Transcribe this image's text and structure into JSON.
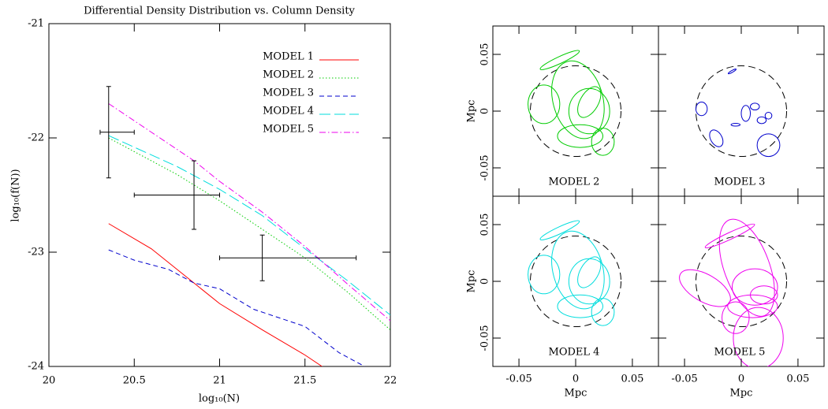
{
  "chart_data": [
    {
      "type": "line",
      "title": "Differential Density Distribution vs. Column Density",
      "xlabel": "log₁₀(N)",
      "ylabel": "log₁₀(f(N))",
      "xlim": [
        20,
        22
      ],
      "ylim": [
        -24,
        -21
      ],
      "xticks": [
        20,
        20.5,
        21,
        21.5,
        22
      ],
      "yticks": [
        -21,
        -22,
        -23,
        -24
      ],
      "series": [
        {
          "name": "MODEL 1",
          "color": "#ff0000",
          "dash": "none",
          "x": [
            20.35,
            20.6,
            20.85,
            21.0,
            21.25,
            21.5,
            21.6
          ],
          "values": [
            -22.75,
            -22.97,
            -23.27,
            -23.45,
            -23.68,
            -23.9,
            -24.0
          ]
        },
        {
          "name": "MODEL 2",
          "color": "#00cc00",
          "dash": "1.5,2.5",
          "x": [
            20.35,
            20.75,
            21.0,
            21.25,
            21.5,
            21.75,
            22.0
          ],
          "values": [
            -22.0,
            -22.32,
            -22.55,
            -22.8,
            -23.05,
            -23.35,
            -23.68
          ]
        },
        {
          "name": "MODEL 3",
          "color": "#0000cc",
          "dash": "6,4",
          "x": [
            20.35,
            20.5,
            20.7,
            20.85,
            21.0,
            21.2,
            21.5,
            21.7,
            21.85
          ],
          "values": [
            -22.98,
            -23.07,
            -23.15,
            -23.27,
            -23.32,
            -23.5,
            -23.65,
            -23.88,
            -24.0
          ]
        },
        {
          "name": "MODEL 4",
          "color": "#00dddd",
          "dash": "14,5",
          "x": [
            20.35,
            20.75,
            21.0,
            21.25,
            21.5,
            21.75,
            22.0
          ],
          "values": [
            -21.98,
            -22.25,
            -22.45,
            -22.68,
            -22.97,
            -23.25,
            -23.55
          ]
        },
        {
          "name": "MODEL 5",
          "color": "#ee00ee",
          "dash": "8,3,1.5,3",
          "x": [
            20.35,
            20.6,
            20.85,
            21.0,
            21.25,
            21.5,
            21.75,
            22.0
          ],
          "values": [
            -21.7,
            -21.95,
            -22.2,
            -22.38,
            -22.65,
            -22.95,
            -23.28,
            -23.6
          ]
        }
      ],
      "errorbars": [
        {
          "x": 20.35,
          "y": -21.95,
          "xlo": 20.3,
          "xhi": 20.5,
          "ylo": -22.35,
          "yhi": -21.55
        },
        {
          "x": 20.85,
          "y": -22.5,
          "xlo": 20.5,
          "xhi": 21.0,
          "ylo": -22.8,
          "yhi": -22.2
        },
        {
          "x": 21.25,
          "y": -23.05,
          "xlo": 21.0,
          "xhi": 21.8,
          "ylo": -23.25,
          "yhi": -22.85
        }
      ]
    },
    {
      "type": "ellipse",
      "xlabel": "Mpc",
      "ylabel": "Mpc",
      "xlim": [
        -0.073,
        0.073
      ],
      "ylim": [
        -0.075,
        0.075
      ],
      "xticks": [
        -0.05,
        0,
        0.05
      ],
      "yticks": [
        -0.05,
        0,
        0.05
      ],
      "circle_radius": 0.04,
      "panels": [
        {
          "label": "MODEL 2",
          "color": "#00cc00",
          "ellipses": [
            {
              "x": -0.028,
              "y": 0.006,
              "rx": 0.014,
              "ry": 0.017,
              "angle": 0
            },
            {
              "x": 0.002,
              "y": 0.01,
              "rx": 0.022,
              "ry": 0.035,
              "angle": 15
            },
            {
              "x": 0.012,
              "y": 0.0,
              "rx": 0.018,
              "ry": 0.02,
              "angle": 0
            },
            {
              "x": 0.024,
              "y": -0.027,
              "rx": 0.01,
              "ry": 0.012,
              "angle": 0
            },
            {
              "x": -0.014,
              "y": 0.045,
              "rx": 0.019,
              "ry": 0.003,
              "angle": 25
            },
            {
              "x": 0.004,
              "y": -0.022,
              "rx": 0.02,
              "ry": 0.01,
              "angle": 0
            },
            {
              "x": 0.012,
              "y": 0.008,
              "rx": 0.008,
              "ry": 0.015,
              "angle": -30
            }
          ]
        },
        {
          "label": "MODEL 3",
          "color": "#0000cc",
          "ellipses": [
            {
              "x": -0.035,
              "y": 0.002,
              "rx": 0.005,
              "ry": 0.006,
              "angle": 0
            },
            {
              "x": -0.022,
              "y": -0.024,
              "rx": 0.005,
              "ry": 0.008,
              "angle": 30
            },
            {
              "x": 0.024,
              "y": -0.03,
              "rx": 0.01,
              "ry": 0.01,
              "angle": 0
            },
            {
              "x": 0.018,
              "y": -0.008,
              "rx": 0.004,
              "ry": 0.003,
              "angle": 0
            },
            {
              "x": 0.024,
              "y": -0.004,
              "rx": 0.003,
              "ry": 0.003,
              "angle": 0
            },
            {
              "x": 0.012,
              "y": 0.004,
              "rx": 0.004,
              "ry": 0.003,
              "angle": 0
            },
            {
              "x": 0.004,
              "y": -0.002,
              "rx": 0.004,
              "ry": 0.007,
              "angle": 0
            },
            {
              "x": -0.005,
              "y": -0.012,
              "rx": 0.004,
              "ry": 0.0012,
              "angle": 0
            },
            {
              "x": -0.008,
              "y": 0.035,
              "rx": 0.004,
              "ry": 0.0008,
              "angle": 30
            }
          ]
        },
        {
          "label": "MODEL 4",
          "color": "#00dddd",
          "ellipses": [
            {
              "x": -0.028,
              "y": 0.006,
              "rx": 0.014,
              "ry": 0.017,
              "angle": 0
            },
            {
              "x": 0.002,
              "y": 0.01,
              "rx": 0.022,
              "ry": 0.035,
              "angle": 15
            },
            {
              "x": 0.012,
              "y": 0.0,
              "rx": 0.018,
              "ry": 0.02,
              "angle": 0
            },
            {
              "x": 0.024,
              "y": -0.027,
              "rx": 0.01,
              "ry": 0.012,
              "angle": 0
            },
            {
              "x": -0.014,
              "y": 0.045,
              "rx": 0.019,
              "ry": 0.003,
              "angle": 25
            },
            {
              "x": 0.004,
              "y": -0.022,
              "rx": 0.02,
              "ry": 0.01,
              "angle": 0
            },
            {
              "x": 0.012,
              "y": 0.008,
              "rx": 0.008,
              "ry": 0.015,
              "angle": -30
            }
          ]
        },
        {
          "label": "MODEL 5",
          "color": "#ee00ee",
          "ellipses": [
            {
              "x": -0.032,
              "y": -0.006,
              "rx": 0.025,
              "ry": 0.012,
              "angle": -30
            },
            {
              "x": 0.005,
              "y": 0.012,
              "rx": 0.02,
              "ry": 0.045,
              "angle": 20
            },
            {
              "x": 0.012,
              "y": -0.005,
              "rx": 0.02,
              "ry": 0.016,
              "angle": 0
            },
            {
              "x": 0.015,
              "y": -0.05,
              "rx": 0.022,
              "ry": 0.027,
              "angle": 0
            },
            {
              "x": -0.01,
              "y": 0.04,
              "rx": 0.024,
              "ry": 0.003,
              "angle": 25
            },
            {
              "x": 0.01,
              "y": -0.022,
              "rx": 0.022,
              "ry": 0.01,
              "angle": 0
            },
            {
              "x": -0.005,
              "y": -0.032,
              "rx": 0.012,
              "ry": 0.014,
              "angle": 0
            },
            {
              "x": 0.02,
              "y": -0.012,
              "rx": 0.012,
              "ry": 0.008,
              "angle": 0
            }
          ]
        }
      ]
    }
  ]
}
